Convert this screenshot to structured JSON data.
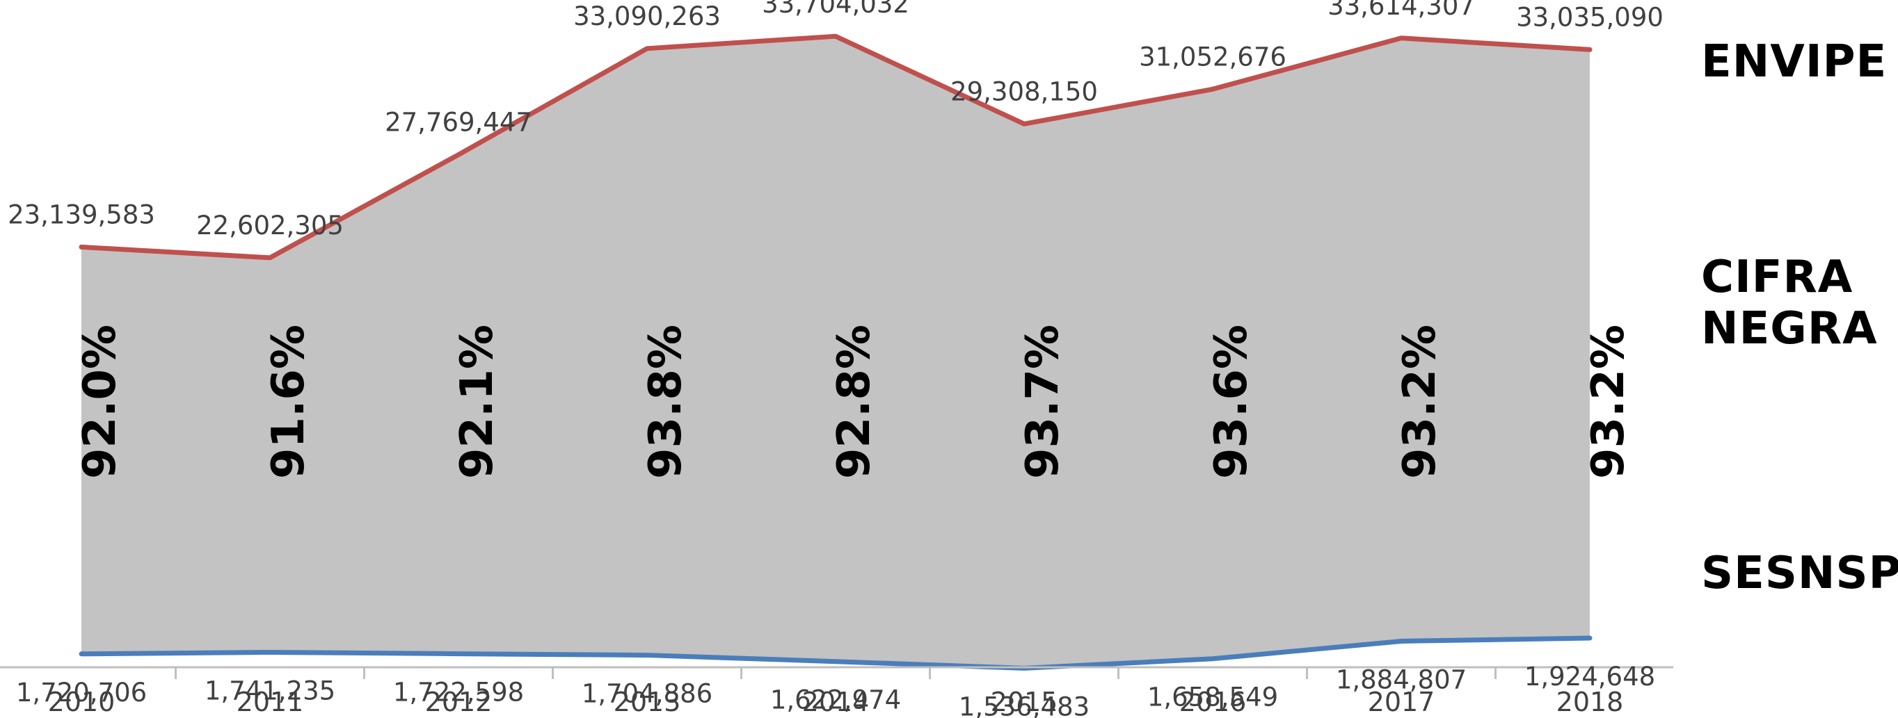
{
  "chart_data": {
    "type": "area",
    "categories": [
      "2010",
      "2011",
      "2012",
      "2013",
      "2014",
      "2015",
      "2016",
      "2017",
      "2018"
    ],
    "series": [
      {
        "name": "ENVIPE",
        "color": "#c0504d",
        "values": [
          23139583,
          22602305,
          27769447,
          33090263,
          33704032,
          29308150,
          31052676,
          33614307,
          33035090
        ],
        "value_labels": [
          "23,139,583",
          "22,602,305",
          "27,769,447",
          "33,090,263",
          "33,704,032",
          "29,308,150",
          "31,052,676",
          "33,614,307",
          "33,035,090"
        ]
      },
      {
        "name": "SESNSP",
        "color": "#4a7ebb",
        "values": [
          1720706,
          1741235,
          1722598,
          1704886,
          1622974,
          1536483,
          1658549,
          1884807,
          1924648
        ],
        "value_labels": [
          "1,720,706",
          "1,741,235",
          "1,722,598",
          "1,704,886",
          "1,622,974",
          "1,536,483",
          "1,658,549",
          "1,884,807",
          "1,924,648"
        ]
      }
    ],
    "cifra_negra": {
      "name": "CIFRA NEGRA",
      "fill_color": "#c3c3c3",
      "percent_labels": [
        "92.0%",
        "91.6%",
        "92.1%",
        "93.8%",
        "92.8%",
        "93.7%",
        "93.6%",
        "93.2%",
        "93.2%"
      ]
    },
    "series_labels": {
      "envipe": "ENVIPE",
      "cifra_line1": "CIFRA",
      "cifra_line2": "NEGRA",
      "sesnsp": "SESNSP"
    },
    "ylim": [
      0,
      36000000
    ],
    "grid": false,
    "legend": "none"
  }
}
